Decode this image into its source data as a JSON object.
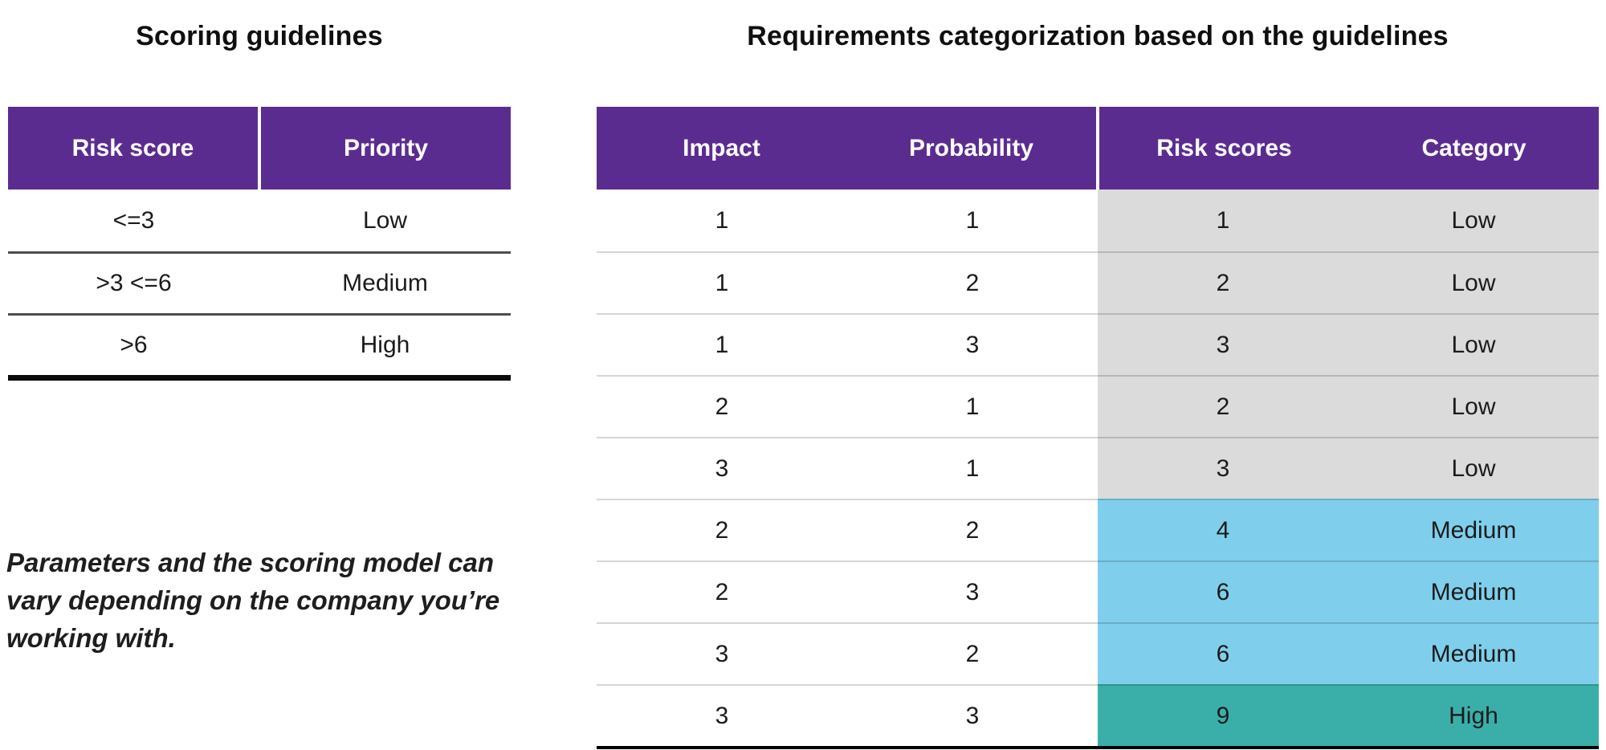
{
  "colors": {
    "header_purple": "#5b2c90",
    "low_gray": "#dbdbdb",
    "medium_cyan": "#7fcfec",
    "high_teal": "#3aafa9"
  },
  "chart_data": [
    {
      "type": "table",
      "title": "Scoring guidelines",
      "columns": [
        "Risk score",
        "Priority"
      ],
      "rows": [
        [
          "<=3",
          "Low"
        ],
        [
          ">3 <=6",
          "Medium"
        ],
        [
          ">6",
          "High"
        ]
      ],
      "note": "Parameters and the scoring model can vary depending on the company you’re working with."
    },
    {
      "type": "table",
      "title": "Requirements categorization based on the guidelines",
      "columns": [
        "Impact",
        "Probability",
        "Risk scores",
        "Category"
      ],
      "rows": [
        [
          "1",
          "1",
          "1",
          "Low"
        ],
        [
          "1",
          "2",
          "2",
          "Low"
        ],
        [
          "1",
          "3",
          "3",
          "Low"
        ],
        [
          "2",
          "1",
          "2",
          "Low"
        ],
        [
          "3",
          "1",
          "3",
          "Low"
        ],
        [
          "2",
          "2",
          "4",
          "Medium"
        ],
        [
          "2",
          "3",
          "6",
          "Medium"
        ],
        [
          "3",
          "2",
          "6",
          "Medium"
        ],
        [
          "3",
          "3",
          "9",
          "High"
        ]
      ],
      "row_categories": [
        "low",
        "low",
        "low",
        "low",
        "low",
        "medium",
        "medium",
        "medium",
        "high"
      ],
      "shaded_columns": [
        "Risk scores",
        "Category"
      ]
    }
  ]
}
